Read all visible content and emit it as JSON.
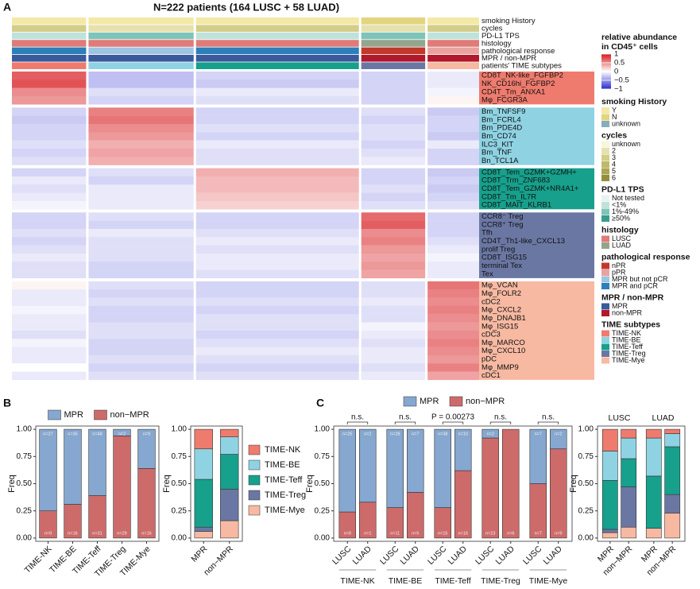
{
  "chart_data": [
    {
      "type": "heatmap",
      "panel": "A",
      "title": "N=222 patients (164 LUSC + 58 LUAD)",
      "tracks": [
        {
          "name": "smoking History",
          "values": [
            "Y",
            "Y",
            "Y",
            "N",
            "Y"
          ]
        },
        {
          "name": "cycles",
          "values": [
            "3",
            "2",
            "3",
            "2",
            "3"
          ]
        },
        {
          "name": "PD-L1 TPS",
          "values": [
            "<1%",
            "1%-49%",
            "<1%",
            "1%-49%",
            "<1%"
          ]
        },
        {
          "name": "histology",
          "values": [
            "LUSC",
            "LUSC",
            "LUSC",
            "LUAD",
            "LUSC"
          ]
        },
        {
          "name": "pathological response",
          "values": [
            "MPR and pCR",
            "MPR but not pCR",
            "MPR and pCR",
            "nPR",
            "pPR"
          ]
        },
        {
          "name": "MPR / non-MPR",
          "values": [
            "MPR",
            "MPR",
            "MPR",
            "non-MPR",
            "non-MPR"
          ]
        },
        {
          "name": "patients' TIME subtypes",
          "values": [
            "TIME-NK",
            "TIME-BE",
            "TIME-Teff",
            "TIME-Treg",
            "TIME-Mye"
          ]
        }
      ],
      "row_groups": [
        {
          "color": "#ee7b6e",
          "rows": [
            {
              "label": "CD8T_NK-like_FGFBP2",
              "values": [
                0.7,
                -0.3,
                -0.2,
                -0.2,
                -0.1
              ]
            },
            {
              "label": "NK_CD16hi_FGFBP2",
              "values": [
                0.75,
                -0.3,
                -0.25,
                -0.2,
                -0.1
              ]
            },
            {
              "label": "CD4T_Tm_ANXA1",
              "values": [
                0.5,
                -0.15,
                -0.1,
                -0.2,
                -0.05
              ]
            },
            {
              "label": "Mφ_FCGR3A",
              "values": [
                0.45,
                -0.2,
                -0.15,
                -0.2,
                0.05
              ]
            }
          ]
        },
        {
          "color": "#8fd3e3",
          "rows": [
            {
              "label": "Bm_TNFSF9",
              "values": [
                -0.2,
                0.55,
                -0.2,
                -0.15,
                -0.25
              ]
            },
            {
              "label": "Bm_FCRL4",
              "values": [
                -0.25,
                0.6,
                -0.2,
                -0.2,
                -0.2
              ]
            },
            {
              "label": "Bm_PDE4D",
              "values": [
                -0.2,
                0.5,
                -0.15,
                -0.15,
                -0.2
              ]
            },
            {
              "label": "Bm_CD74",
              "values": [
                -0.2,
                0.45,
                -0.2,
                -0.15,
                -0.25
              ]
            },
            {
              "label": "ILC3_KIT",
              "values": [
                -0.15,
                0.35,
                -0.1,
                -0.2,
                -0.1
              ]
            },
            {
              "label": "Bm_TNF",
              "values": [
                -0.2,
                0.4,
                -0.15,
                -0.15,
                -0.2
              ]
            },
            {
              "label": "Bn_TCL1A",
              "values": [
                -0.15,
                0.35,
                -0.15,
                -0.1,
                -0.2
              ]
            }
          ]
        },
        {
          "color": "#17a08c",
          "rows": [
            {
              "label": "CD8T_Tem_GZMK+GZMH+",
              "values": [
                -0.2,
                -0.15,
                0.35,
                -0.2,
                -0.25
              ]
            },
            {
              "label": "CD8T_Trm_ZNF683",
              "values": [
                -0.1,
                -0.2,
                0.3,
                -0.2,
                -0.2
              ]
            },
            {
              "label": "CD8T_Tem_GZMK+NR4A1+",
              "values": [
                -0.15,
                -0.1,
                0.3,
                -0.15,
                -0.25
              ]
            },
            {
              "label": "CD8T_Tm_IL7R",
              "values": [
                -0.1,
                -0.1,
                0.25,
                -0.2,
                -0.2
              ]
            },
            {
              "label": "CD8T_MAIT_KLRB1",
              "values": [
                -0.05,
                -0.1,
                0.2,
                -0.15,
                -0.15
              ]
            }
          ]
        },
        {
          "color": "#6b77a3",
          "rows": [
            {
              "label": "CCR8⁻ Treg",
              "values": [
                -0.2,
                -0.15,
                -0.2,
                0.65,
                -0.2
              ]
            },
            {
              "label": "CCR8⁺ Treg",
              "values": [
                -0.2,
                -0.2,
                -0.2,
                0.7,
                -0.2
              ]
            },
            {
              "label": "Tfh",
              "values": [
                -0.15,
                -0.1,
                -0.15,
                0.5,
                -0.2
              ]
            },
            {
              "label": "CD4T_Th1-like_CXCL13",
              "values": [
                -0.2,
                -0.15,
                -0.1,
                0.55,
                -0.15
              ]
            },
            {
              "label": "prolif Treg",
              "values": [
                -0.15,
                -0.15,
                -0.15,
                0.45,
                -0.1
              ]
            },
            {
              "label": "CD8T_ISG15",
              "values": [
                -0.1,
                -0.15,
                -0.1,
                0.4,
                -0.05
              ]
            },
            {
              "label": "terminal Tex",
              "values": [
                -0.15,
                -0.2,
                -0.1,
                0.45,
                -0.1
              ]
            },
            {
              "label": "Tex",
              "values": [
                -0.15,
                -0.2,
                -0.15,
                0.4,
                -0.1
              ]
            }
          ]
        },
        {
          "color": "#f7b9a2",
          "rows": [
            {
              "label": "Mφ_VCAN",
              "values": [
                0.05,
                -0.15,
                -0.2,
                -0.15,
                0.6
              ]
            },
            {
              "label": "Mφ_FOLR2",
              "values": [
                -0.1,
                -0.2,
                -0.2,
                -0.15,
                0.55
              ]
            },
            {
              "label": "cDC2",
              "values": [
                -0.1,
                -0.15,
                -0.15,
                -0.1,
                0.5
              ]
            },
            {
              "label": "Mφ_CXCL2",
              "values": [
                -0.05,
                -0.2,
                -0.2,
                -0.15,
                0.55
              ]
            },
            {
              "label": "Mφ_DNAJB1",
              "values": [
                -0.1,
                -0.2,
                -0.15,
                -0.15,
                0.5
              ]
            },
            {
              "label": "Mφ_ISG15",
              "values": [
                -0.1,
                -0.15,
                -0.15,
                -0.05,
                0.45
              ]
            },
            {
              "label": "cDC3",
              "values": [
                -0.15,
                -0.15,
                -0.2,
                -0.1,
                0.5
              ]
            },
            {
              "label": "Mφ_MARCO",
              "values": [
                -0.05,
                -0.2,
                -0.15,
                -0.15,
                0.55
              ]
            },
            {
              "label": "Mφ_CXCL10",
              "values": [
                -0.1,
                -0.2,
                -0.1,
                -0.1,
                0.5
              ]
            },
            {
              "label": "pDC",
              "values": [
                -0.1,
                -0.15,
                -0.15,
                -0.1,
                0.45
              ]
            },
            {
              "label": "Mφ_MMP9",
              "values": [
                0.0,
                -0.2,
                -0.2,
                -0.15,
                0.55
              ]
            },
            {
              "label": "cDC1",
              "values": [
                -0.1,
                -0.15,
                -0.15,
                -0.1,
                0.4
              ]
            }
          ]
        }
      ],
      "colorbar": {
        "title": [
          "relative abundance",
          "in CD45⁺ cells"
        ],
        "lim": [
          -1,
          1
        ],
        "colors": [
          "#2a2ad0",
          "#ffffff",
          "#d7191c"
        ],
        "ticks": [
          1,
          0.5,
          0,
          {
            "value": -0.5,
            "label": "−0.5"
          },
          {
            "value": -1,
            "label": "−1"
          }
        ]
      },
      "legends": [
        {
          "title": "smoking History",
          "levels": [
            "Y",
            "N",
            "unknown"
          ],
          "colors": [
            "#f3e8a6",
            "#e3d47e",
            "#86aebb"
          ]
        },
        {
          "title": "cycles",
          "levels": [
            "unknown",
            "2",
            "3",
            "4",
            "5",
            "6"
          ],
          "colors": [
            "#f7f5dc",
            "#e6e2b0",
            "#d3cd8a",
            "#c0b96c",
            "#ada553",
            "#958e3f"
          ]
        },
        {
          "title": "PD-L1 TPS",
          "levels": [
            "Not tested",
            "<1%",
            "1%-49%",
            "≥50%"
          ],
          "colors": [
            "#e7f3f0",
            "#bfe3da",
            "#7fc4b8",
            "#3a9c90"
          ]
        },
        {
          "title": "histology",
          "levels": [
            "LUSC",
            "LUAD"
          ],
          "colors": [
            "#e07b78",
            "#93a58d"
          ]
        },
        {
          "title": "pathological response",
          "levels": [
            "nPR",
            "pPR",
            "MPR but not pCR",
            "MPR and pCR"
          ],
          "colors": [
            "#c0392b",
            "#e8a3a0",
            "#9ec5e0",
            "#2c7fb8"
          ]
        },
        {
          "title": "MPR / non-MPR",
          "levels": [
            "MPR",
            "non-MPR"
          ],
          "colors": [
            "#3a5a9a",
            "#b2182b"
          ]
        },
        {
          "title": "TIME subtypes",
          "levels": [
            "TIME-NK",
            "TIME-BE",
            "TIME-Teff",
            "TIME-Treg",
            "TIME-Mye"
          ],
          "colors": [
            "#ee7b6e",
            "#8fd3e3",
            "#17a08c",
            "#6b77a3",
            "#f7b9a2"
          ]
        }
      ]
    },
    {
      "type": "stacked_bar",
      "panel": "B",
      "ylabel": "Freq",
      "legend": "top",
      "categories": [
        "TIME-NK",
        "TIME-BE",
        "TIME-Teff",
        "TIME-Treg",
        "TIME-Mye"
      ],
      "series": [
        {
          "name": "MPR",
          "color": "#86a7cf",
          "values": [
            0.75,
            0.69,
            0.61,
            0.06,
            0.36
          ],
          "counts": [
            27,
            35,
            48,
            2,
            9
          ],
          "count_labels": [
            "n=27",
            "n=35",
            "n=48",
            "n=2",
            "n=9"
          ]
        },
        {
          "name": "non−MPR",
          "color": "#cd6b6b",
          "values": [
            0.25,
            0.31,
            0.39,
            0.94,
            0.64
          ],
          "counts": [
            9,
            16,
            31,
            29,
            16
          ],
          "count_labels": [
            "n=9",
            "n=16",
            "n=31",
            "n=29",
            "n=16"
          ]
        }
      ],
      "ylim": [
        -0.03,
        1.03
      ],
      "yticks": [
        {
          "value": 0,
          "label": "0.00"
        },
        {
          "value": 0.25,
          "label": "0.25"
        },
        {
          "value": 0.5,
          "label": "0.50"
        },
        {
          "value": 0.75,
          "label": "0.75"
        },
        {
          "value": 1,
          "label": "1.00"
        }
      ]
    },
    {
      "type": "stacked_bar",
      "ylabel": "Freq",
      "legend": "right",
      "categories": [
        "MPR",
        "non−MPR"
      ],
      "series": [
        {
          "name": "TIME-NK",
          "color": "#ee7b6e",
          "values": [
            0.18,
            0.07
          ]
        },
        {
          "name": "TIME-BE",
          "color": "#8fd3e3",
          "values": [
            0.28,
            0.16
          ]
        },
        {
          "name": "TIME-Teff",
          "color": "#17a08c",
          "values": [
            0.44,
            0.32
          ]
        },
        {
          "name": "TIME-Treg",
          "color": "#6b77a3",
          "values": [
            0.04,
            0.29
          ]
        },
        {
          "name": "TIME-Mye",
          "color": "#f7b9a2",
          "values": [
            0.06,
            0.16
          ]
        }
      ],
      "ylim": [
        -0.03,
        1.03
      ],
      "yticks": [
        {
          "value": 0,
          "label": "0.00"
        },
        {
          "value": 0.25,
          "label": "0.25"
        },
        {
          "value": 0.5,
          "label": "0.50"
        },
        {
          "value": 0.75,
          "label": "0.75"
        },
        {
          "value": 1,
          "label": "1.00"
        }
      ]
    },
    {
      "type": "stacked_bar",
      "panel": "C",
      "ylabel": "Freq",
      "legend": "top",
      "group_labels": "bottom",
      "groups": [
        {
          "name": "TIME-NK",
          "categories": [
            "LUSC",
            "LUAD"
          ],
          "annotation": "n.s."
        },
        {
          "name": "TIME-BE",
          "categories": [
            "LUSC",
            "LUAD"
          ],
          "annotation": "n.s."
        },
        {
          "name": "TIME-Teff",
          "categories": [
            "LUSC",
            "LUAD"
          ],
          "annotation": "P = 0.00273"
        },
        {
          "name": "TIME-Treg",
          "categories": [
            "LUSC",
            "LUAD"
          ],
          "annotation": "n.s."
        },
        {
          "name": "TIME-Mye",
          "categories": [
            "LUSC",
            "LUAD"
          ],
          "annotation": "n.s."
        }
      ],
      "series": [
        {
          "name": "MPR",
          "color": "#86a7cf",
          "values": [
            0.76,
            0.67,
            0.72,
            0.58,
            0.72,
            0.38,
            0.08,
            0,
            0.5,
            0.18
          ],
          "counts": [
            25,
            2,
            28,
            7,
            38,
            10,
            2,
            null,
            7,
            2
          ],
          "count_labels": [
            "n=25",
            "n=2",
            "n=28",
            "n=7",
            "n=38",
            "n=10",
            "n=2",
            null,
            "n=7",
            "n=2"
          ]
        },
        {
          "name": "non−MPR",
          "color": "#cd6b6b",
          "values": [
            0.24,
            0.33,
            0.28,
            0.42,
            0.28,
            0.62,
            0.92,
            1,
            0.5,
            0.82
          ],
          "counts": [
            8,
            1,
            11,
            5,
            15,
            16,
            23,
            6,
            7,
            9
          ],
          "count_labels": [
            "n=8",
            "n=1",
            "n=11",
            "n=5",
            "n=15",
            "n=16",
            "n=23",
            "n=6",
            "n=7",
            "n=9"
          ]
        }
      ],
      "ylim": [
        -0.03,
        1.03
      ],
      "yticks": [
        {
          "value": 0,
          "label": "0.00"
        },
        {
          "value": 0.25,
          "label": "0.25"
        },
        {
          "value": 0.5,
          "label": "0.50"
        },
        {
          "value": 0.75,
          "label": "0.75"
        },
        {
          "value": 1,
          "label": "1.00"
        }
      ]
    },
    {
      "type": "stacked_bar",
      "ylabel": "Freq",
      "group_labels": "top",
      "groups": [
        {
          "name": "LUSC",
          "categories": [
            "MPR",
            "non−MPR"
          ]
        },
        {
          "name": "LUAD",
          "categories": [
            "MPR",
            "non−MPR"
          ]
        }
      ],
      "series": [
        {
          "name": "TIME-NK",
          "color": "#ee7b6e",
          "values": [
            0.2,
            0.08,
            0.08,
            0.04
          ]
        },
        {
          "name": "TIME-BE",
          "color": "#8fd3e3",
          "values": [
            0.27,
            0.19,
            0.35,
            0.12
          ]
        },
        {
          "name": "TIME-Teff",
          "color": "#17a08c",
          "values": [
            0.45,
            0.26,
            0.48,
            0.44
          ]
        },
        {
          "name": "TIME-Treg",
          "color": "#6b77a3",
          "values": [
            0.03,
            0.37,
            0,
            0.17
          ]
        },
        {
          "name": "TIME-Mye",
          "color": "#f7b9a2",
          "values": [
            0.05,
            0.1,
            0.09,
            0.23
          ]
        }
      ],
      "ylim": [
        -0.03,
        1.03
      ],
      "yticks": [
        {
          "value": 0,
          "label": "0.00"
        },
        {
          "value": 0.25,
          "label": "0.25"
        },
        {
          "value": 0.5,
          "label": "0.50"
        },
        {
          "value": 0.75,
          "label": "0.75"
        },
        {
          "value": 1,
          "label": "1.00"
        }
      ]
    }
  ]
}
